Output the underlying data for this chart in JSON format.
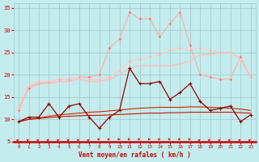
{
  "xlabel": "Vent moyen/en rafales ( km/h )",
  "background_color": "#c4ecec",
  "grid_color": "#a0c8c8",
  "xlim": [
    -0.5,
    23.5
  ],
  "ylim": [
    5,
    36
  ],
  "yticks": [
    5,
    10,
    15,
    20,
    25,
    30,
    35
  ],
  "xticks": [
    0,
    1,
    2,
    3,
    4,
    5,
    6,
    7,
    8,
    9,
    10,
    11,
    12,
    13,
    14,
    15,
    16,
    17,
    18,
    19,
    20,
    21,
    22,
    23
  ],
  "x": [
    0,
    1,
    2,
    3,
    4,
    5,
    6,
    7,
    8,
    9,
    10,
    11,
    12,
    13,
    14,
    15,
    16,
    17,
    18,
    19,
    20,
    21,
    22,
    23
  ],
  "line_smooth1": [
    9.5,
    10.0,
    10.2,
    10.4,
    10.6,
    10.7,
    10.8,
    10.9,
    10.9,
    11.0,
    11.1,
    11.2,
    11.3,
    11.4,
    11.4,
    11.5,
    11.5,
    11.6,
    11.6,
    11.6,
    11.6,
    11.6,
    11.5,
    11.4
  ],
  "line_smooth2": [
    9.5,
    10.0,
    10.3,
    10.7,
    11.0,
    11.2,
    11.4,
    11.6,
    11.7,
    11.9,
    12.1,
    12.3,
    12.5,
    12.6,
    12.7,
    12.7,
    12.7,
    12.8,
    12.8,
    12.7,
    12.6,
    12.5,
    12.3,
    12.0
  ],
  "line_jagged1": [
    9.5,
    10.5,
    10.5,
    13.5,
    10.5,
    13.0,
    13.5,
    10.5,
    8.0,
    10.5,
    12.0,
    21.5,
    18.0,
    18.0,
    18.5,
    14.5,
    16.0,
    18.0,
    14.0,
    12.0,
    12.5,
    13.0,
    9.5,
    11.0
  ],
  "line_pink1": [
    12.5,
    17.5,
    18.0,
    18.0,
    18.5,
    18.5,
    19.0,
    18.5,
    18.5,
    19.0,
    20.0,
    21.5,
    22.0,
    22.0,
    22.0,
    22.0,
    22.5,
    23.0,
    24.5,
    24.5,
    25.0,
    25.0,
    23.5,
    19.5
  ],
  "line_pink2": [
    12.5,
    17.5,
    18.5,
    18.5,
    19.0,
    19.0,
    19.5,
    19.0,
    19.0,
    19.5,
    21.0,
    23.0,
    23.5,
    24.0,
    24.5,
    25.5,
    26.0,
    25.5,
    26.0,
    25.5,
    25.0,
    25.0,
    23.5,
    19.5
  ],
  "line_pink3": [
    12.0,
    17.0,
    18.0,
    18.5,
    19.0,
    19.0,
    19.5,
    19.5,
    20.0,
    26.0,
    28.0,
    34.0,
    32.5,
    32.5,
    28.5,
    31.5,
    34.0,
    26.5,
    20.0,
    19.5,
    19.0,
    19.0,
    24.0,
    19.5
  ],
  "color_smooth": "#cc2200",
  "color_dark_nomarker": "#cc1100",
  "color_jagged": "#990000",
  "color_pink1": "#ffbbbb",
  "color_pink2": "#ffcccc",
  "color_pink3": "#ffaaaa",
  "arrow_directions": [
    45,
    45,
    45,
    45,
    45,
    45,
    45,
    45,
    90,
    90,
    90,
    90,
    90,
    90,
    90,
    90,
    90,
    90,
    45,
    45,
    45,
    45,
    45,
    45
  ]
}
